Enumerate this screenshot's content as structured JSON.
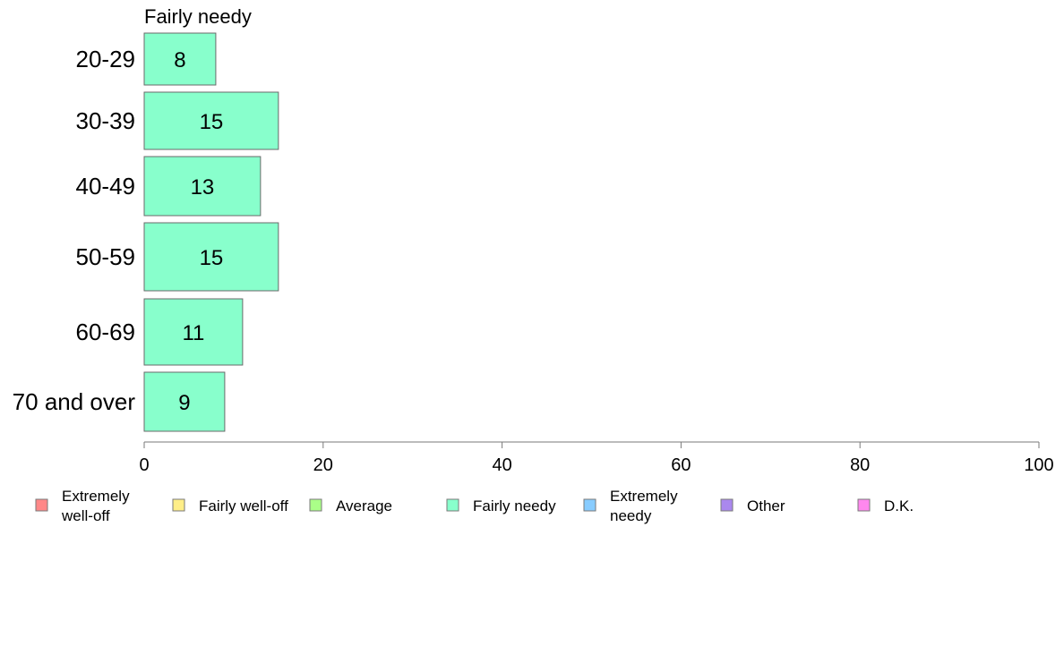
{
  "chart_data": {
    "type": "bar",
    "orientation": "horizontal",
    "title": "Fairly needy",
    "categories": [
      "20-29",
      "30-39",
      "40-49",
      "50-59",
      "60-69",
      "70 and over"
    ],
    "series": [
      {
        "name": "Fairly needy",
        "values": [
          8,
          15,
          13,
          15,
          11,
          9
        ],
        "color": "#88FFCC"
      }
    ],
    "value_labels": [
      "8",
      "15",
      "13",
      "15",
      "11",
      "9"
    ],
    "xlim": [
      0,
      100
    ],
    "xticks": [
      0,
      20,
      40,
      60,
      80,
      100
    ],
    "xtick_labels": [
      "0",
      "20",
      "40",
      "60",
      "80",
      "100"
    ],
    "grid": false,
    "legend": {
      "placement": "bottom",
      "items": [
        {
          "lines": [
            "Extremely",
            "well-off"
          ],
          "color": "#FF8888"
        },
        {
          "lines": [
            "Fairly well-off"
          ],
          "color": "#FFEE88"
        },
        {
          "lines": [
            "Average"
          ],
          "color": "#AAFF88"
        },
        {
          "lines": [
            "Fairly needy"
          ],
          "color": "#88FFCC"
        },
        {
          "lines": [
            "Extremely",
            "needy"
          ],
          "color": "#88CCFF"
        },
        {
          "lines": [
            "Other"
          ],
          "color": "#AA88EE"
        },
        {
          "lines": [
            "D.K."
          ],
          "color": "#FF88EE"
        }
      ]
    }
  }
}
